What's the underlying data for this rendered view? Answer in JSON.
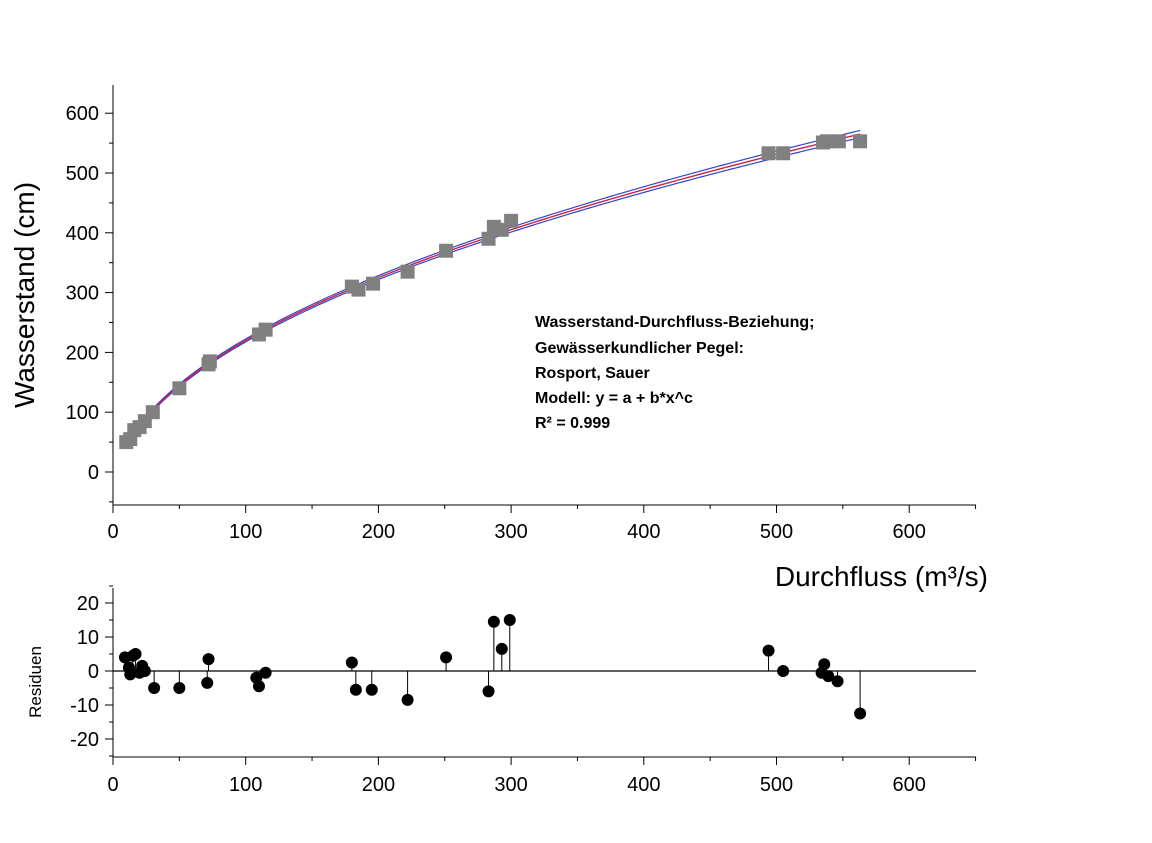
{
  "chart_data": [
    {
      "type": "scatter",
      "title": "",
      "xlabel": "Durchfluss (m³/s)",
      "ylabel": "Wasserstand (cm)",
      "xlim": [
        0,
        650
      ],
      "ylim": [
        -50,
        650
      ],
      "x_ticks": [
        "0",
        "100",
        "200",
        "300",
        "400",
        "500",
        "600"
      ],
      "y_ticks": [
        "0",
        "100",
        "200",
        "300",
        "400",
        "500",
        "600"
      ],
      "marker": "square",
      "marker_color": "#808080",
      "grid": false,
      "points": [
        {
          "x": 10,
          "y": 50
        },
        {
          "x": 13,
          "y": 55
        },
        {
          "x": 16,
          "y": 70
        },
        {
          "x": 20,
          "y": 75
        },
        {
          "x": 24,
          "y": 85
        },
        {
          "x": 30,
          "y": 100
        },
        {
          "x": 50,
          "y": 140
        },
        {
          "x": 72,
          "y": 180
        },
        {
          "x": 73,
          "y": 185
        },
        {
          "x": 110,
          "y": 230
        },
        {
          "x": 115,
          "y": 238
        },
        {
          "x": 180,
          "y": 310
        },
        {
          "x": 185,
          "y": 305
        },
        {
          "x": 196,
          "y": 315
        },
        {
          "x": 222,
          "y": 335
        },
        {
          "x": 251,
          "y": 370
        },
        {
          "x": 283,
          "y": 390
        },
        {
          "x": 287,
          "y": 410
        },
        {
          "x": 293,
          "y": 405
        },
        {
          "x": 300,
          "y": 420
        },
        {
          "x": 494,
          "y": 533
        },
        {
          "x": 505,
          "y": 533
        },
        {
          "x": 535,
          "y": 551
        },
        {
          "x": 538,
          "y": 553
        },
        {
          "x": 547,
          "y": 553
        },
        {
          "x": 563,
          "y": 553
        }
      ],
      "fit": {
        "model": "y = a + b*x^c",
        "colors": {
          "fit": "#cc2244",
          "band": "#3344cc"
        },
        "x_range": [
          10,
          563
        ]
      },
      "annotation": [
        "Wasserstand-Durchfluss-Beziehung;",
        "Gewässerkundlicher Pegel:",
        "Rosport, Sauer",
        "Modell: y = a + b*x^c",
        "R² = 0.999"
      ]
    },
    {
      "type": "scatter",
      "title": "",
      "xlabel": "",
      "ylabel": "Residuen",
      "xlim": [
        0,
        650
      ],
      "ylim": [
        -25,
        25
      ],
      "x_ticks": [
        "0",
        "100",
        "200",
        "300",
        "400",
        "500",
        "600"
      ],
      "y_ticks": [
        "20",
        "10",
        "0",
        "-10",
        "-20"
      ],
      "marker": "circle",
      "marker_color": "#000000",
      "stems": true,
      "grid": false,
      "points": [
        {
          "x": 9,
          "y": 4
        },
        {
          "x": 12,
          "y": 1
        },
        {
          "x": 13,
          "y": -1
        },
        {
          "x": 15,
          "y": 4.5
        },
        {
          "x": 17,
          "y": 5
        },
        {
          "x": 20,
          "y": -0.5
        },
        {
          "x": 22,
          "y": 1.5
        },
        {
          "x": 24,
          "y": 0
        },
        {
          "x": 31,
          "y": -5
        },
        {
          "x": 50,
          "y": -5
        },
        {
          "x": 71,
          "y": -3.5
        },
        {
          "x": 72,
          "y": 3.5
        },
        {
          "x": 108,
          "y": -2
        },
        {
          "x": 110,
          "y": -4.5
        },
        {
          "x": 115,
          "y": -0.5
        },
        {
          "x": 180,
          "y": 2.5
        },
        {
          "x": 183,
          "y": -5.5
        },
        {
          "x": 195,
          "y": -5.5
        },
        {
          "x": 222,
          "y": -8.5
        },
        {
          "x": 251,
          "y": 4
        },
        {
          "x": 283,
          "y": -6
        },
        {
          "x": 287,
          "y": 14.5
        },
        {
          "x": 293,
          "y": 6.5
        },
        {
          "x": 299,
          "y": 15
        },
        {
          "x": 494,
          "y": 6
        },
        {
          "x": 505,
          "y": 0
        },
        {
          "x": 534,
          "y": -0.5
        },
        {
          "x": 536,
          "y": 2
        },
        {
          "x": 539,
          "y": -1.5
        },
        {
          "x": 546,
          "y": -3
        },
        {
          "x": 563,
          "y": -12.5
        }
      ]
    }
  ]
}
